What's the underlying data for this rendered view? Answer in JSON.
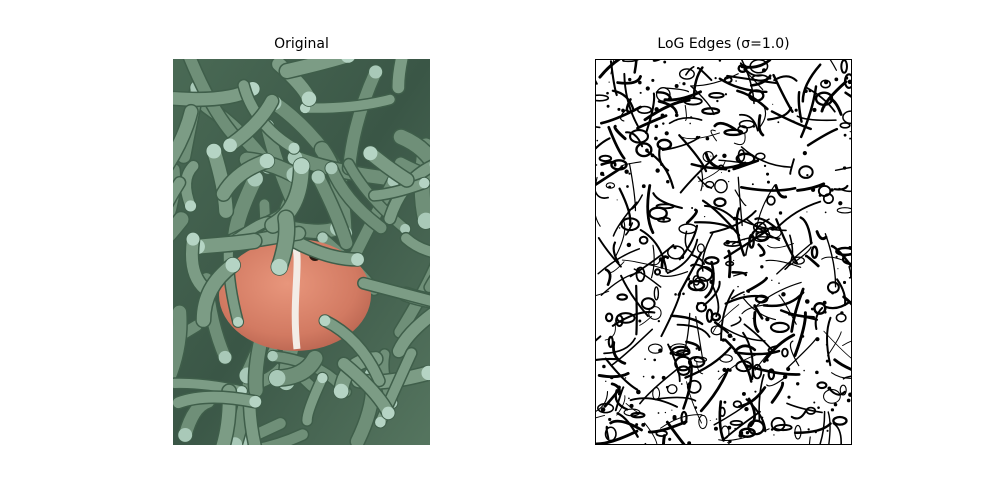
{
  "panels": {
    "left_title": "Original",
    "right_title": "LoG Edges (σ=1.0)"
  },
  "colors": {
    "anemone_dark": "#3f5e4a",
    "anemone_mid": "#6f8f78",
    "anemone_tip": "#a9c9b8",
    "fish_body": "#d8826a",
    "fish_stripe": "#f3ece6",
    "edge_black": "#000000",
    "edge_white": "#ffffff"
  }
}
